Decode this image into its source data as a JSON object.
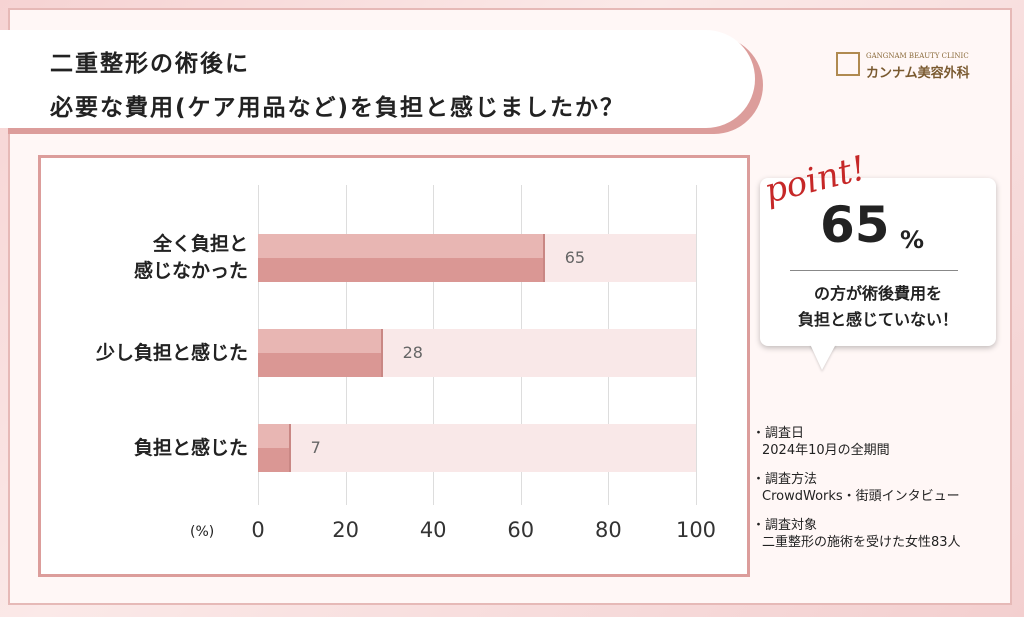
{
  "header": {
    "title_lines": [
      "二重整形の術後に",
      "必要な費用(ケア用品など)を負担と感じましたか？"
    ],
    "logo": {
      "en": "GANGNAM BEAUTY CLINIC",
      "ja": "カンナム美容外科"
    }
  },
  "chart_data": {
    "type": "bar",
    "orientation": "horizontal",
    "categories": [
      "全く負担と\n感じなかった",
      "少し負担と感じた",
      "負担と感じた"
    ],
    "values": [
      65,
      28,
      7
    ],
    "color": "#da9794",
    "xlim": [
      0,
      100
    ],
    "xticks": [
      0,
      20,
      40,
      60,
      80,
      100
    ],
    "x_label": "(%)",
    "grid": true
  },
  "point": {
    "heading": "point!",
    "number": "65",
    "unit": "%",
    "lines": [
      "の方が術後費用を",
      "負担と感じていない！"
    ]
  },
  "notes": [
    {
      "label": "・調査日",
      "text": "2024年10月の全期間"
    },
    {
      "label": "・調査方法",
      "text": "CrowdWorks・街頭インタビュー"
    },
    {
      "label": "・調査対象",
      "text": "二重整形の施術を受けた女性83人"
    }
  ]
}
